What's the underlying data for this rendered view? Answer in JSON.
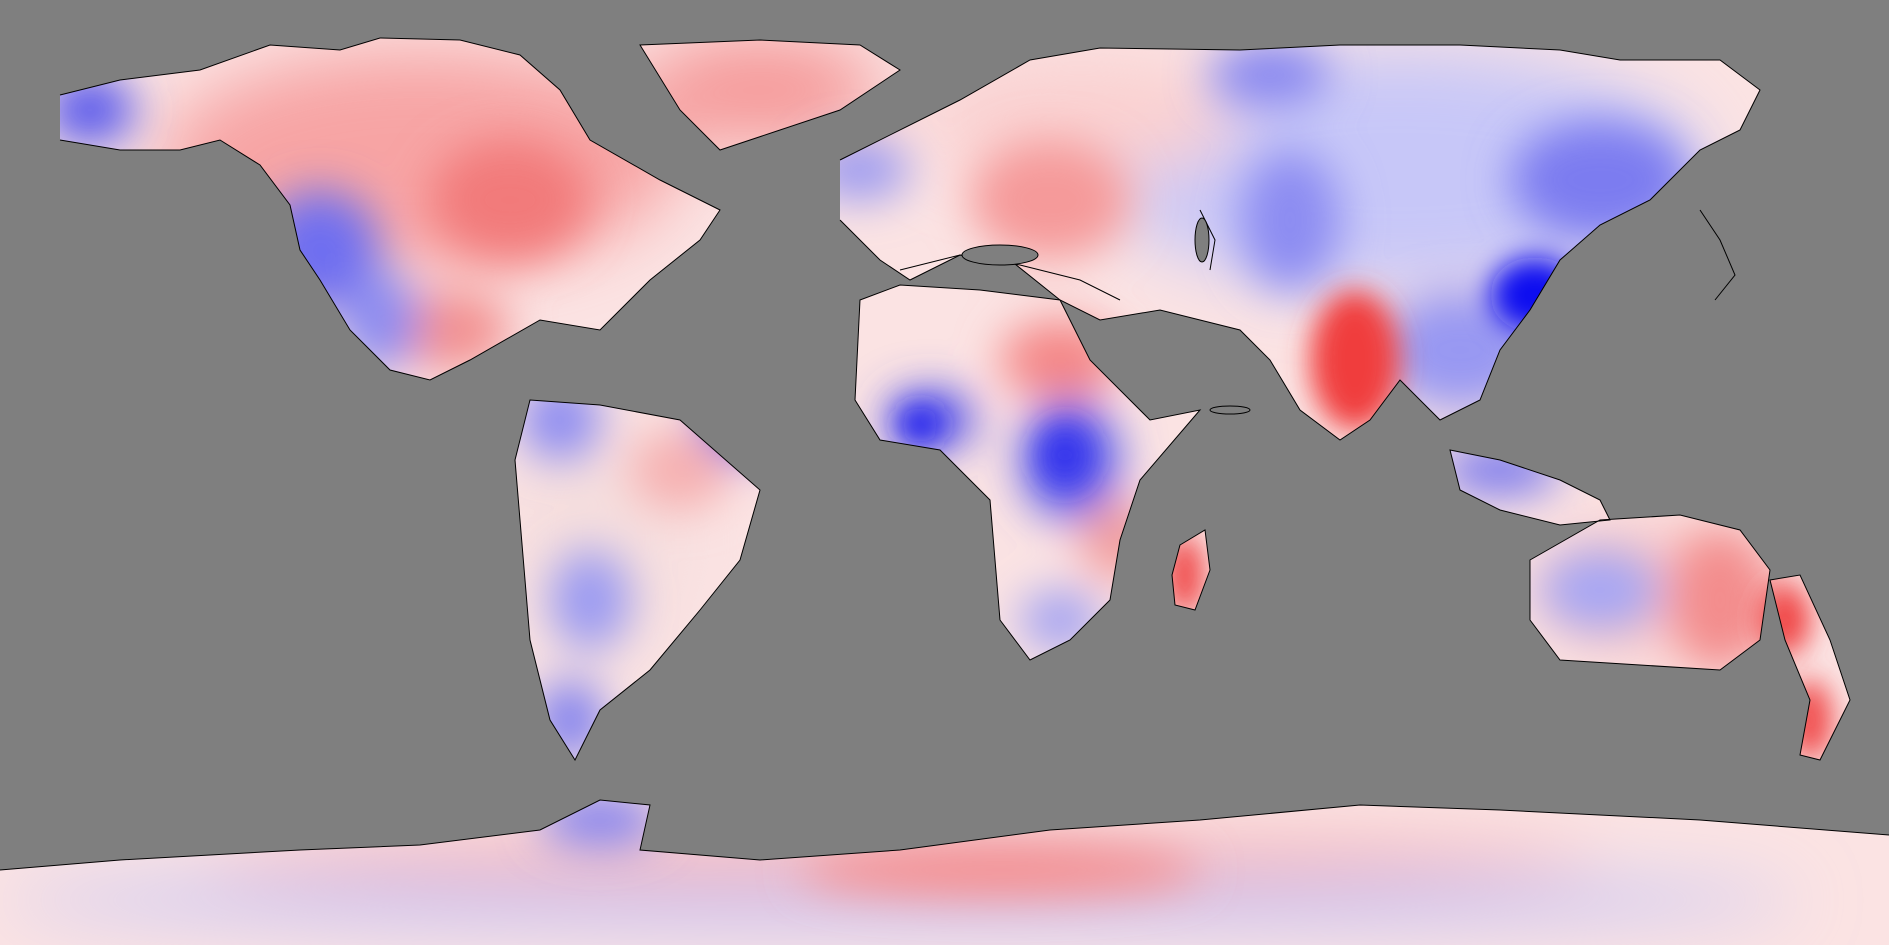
{
  "map": {
    "projection": "equirectangular",
    "colors": {
      "ocean": "#7f7f7f",
      "coastline": "#000000",
      "strong_warm": "#f03c3c",
      "warm": "#f59090",
      "light_warm": "#fbd6d6",
      "neutral": "#ffffff",
      "light_cool": "#dcdcfb",
      "cool": "#9090f2",
      "strong_cool": "#1010f0"
    },
    "legend": null
  }
}
